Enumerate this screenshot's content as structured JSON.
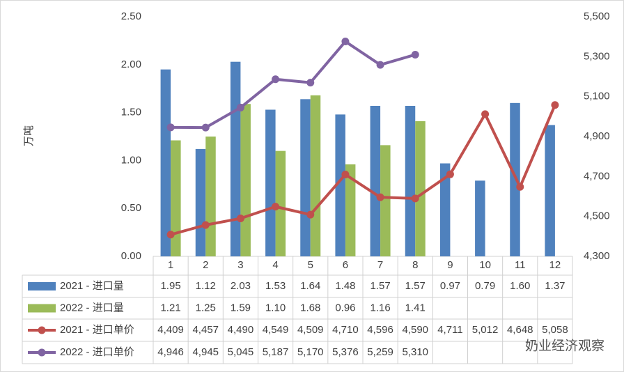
{
  "chart_data": {
    "type": "bar",
    "y_label": "万吨",
    "watermark": "奶业经济观察",
    "categories": [
      "1",
      "2",
      "3",
      "4",
      "5",
      "6",
      "7",
      "8",
      "9",
      "10",
      "11",
      "12"
    ],
    "ylim": [
      0,
      2.5
    ],
    "yticks": [
      {
        "value": 0,
        "label": "0.00"
      },
      {
        "value": 0.5,
        "label": "0.50"
      },
      {
        "value": 1,
        "label": "1.00"
      },
      {
        "value": 1.5,
        "label": "1.50"
      },
      {
        "value": 2,
        "label": "2.00"
      },
      {
        "value": 2.5,
        "label": "2.50"
      }
    ],
    "y2lim": [
      4300,
      5500
    ],
    "y2ticks": [
      {
        "value": 4300,
        "label": "4,300"
      },
      {
        "value": 4500,
        "label": "4,500"
      },
      {
        "value": 4700,
        "label": "4,700"
      },
      {
        "value": 4900,
        "label": "4,900"
      },
      {
        "value": 5100,
        "label": "5,100"
      },
      {
        "value": 5300,
        "label": "5,300"
      },
      {
        "value": 5500,
        "label": "5,500"
      }
    ],
    "grid": false,
    "series": [
      {
        "name": "2021 - 进口量",
        "type": "bar",
        "color": "#4f81bd",
        "values": [
          1.95,
          1.12,
          2.03,
          1.53,
          1.64,
          1.48,
          1.57,
          1.57,
          0.97,
          0.79,
          1.6,
          1.37
        ],
        "value_labels": [
          "1.95",
          "1.12",
          "2.03",
          "1.53",
          "1.64",
          "1.48",
          "1.57",
          "1.57",
          "0.97",
          "0.79",
          "1.60",
          "1.37"
        ]
      },
      {
        "name": "2022 - 进口量",
        "type": "bar",
        "color": "#9bbb59",
        "values": [
          1.21,
          1.25,
          1.59,
          1.1,
          1.68,
          0.96,
          1.16,
          1.41,
          null,
          null,
          null,
          null
        ],
        "value_labels": [
          "1.21",
          "1.25",
          "1.59",
          "1.10",
          "1.68",
          "0.96",
          "1.16",
          "1.41",
          null,
          null,
          null,
          null
        ]
      },
      {
        "name": "2021 - 进口单价",
        "type": "line",
        "axis": "y2",
        "color": "#c0504d",
        "values": [
          4409,
          4457,
          4490,
          4549,
          4509,
          4710,
          4596,
          4590,
          4711,
          5012,
          4648,
          5058
        ],
        "value_labels": [
          "4,409",
          "4,457",
          "4,490",
          "4,549",
          "4,509",
          "4,710",
          "4,596",
          "4,590",
          "4,711",
          "5,012",
          "4,648",
          "5,058"
        ]
      },
      {
        "name": "2022 - 进口单价",
        "type": "line",
        "axis": "y2",
        "color": "#8064a2",
        "values": [
          4946,
          4945,
          5045,
          5187,
          5170,
          5376,
          5259,
          5310,
          null,
          null,
          null,
          null
        ],
        "value_labels": [
          "4,946",
          "4,945",
          "5,045",
          "5,187",
          "5,170",
          "5,376",
          "5,259",
          "5,310",
          null,
          null,
          null,
          null
        ]
      }
    ]
  }
}
